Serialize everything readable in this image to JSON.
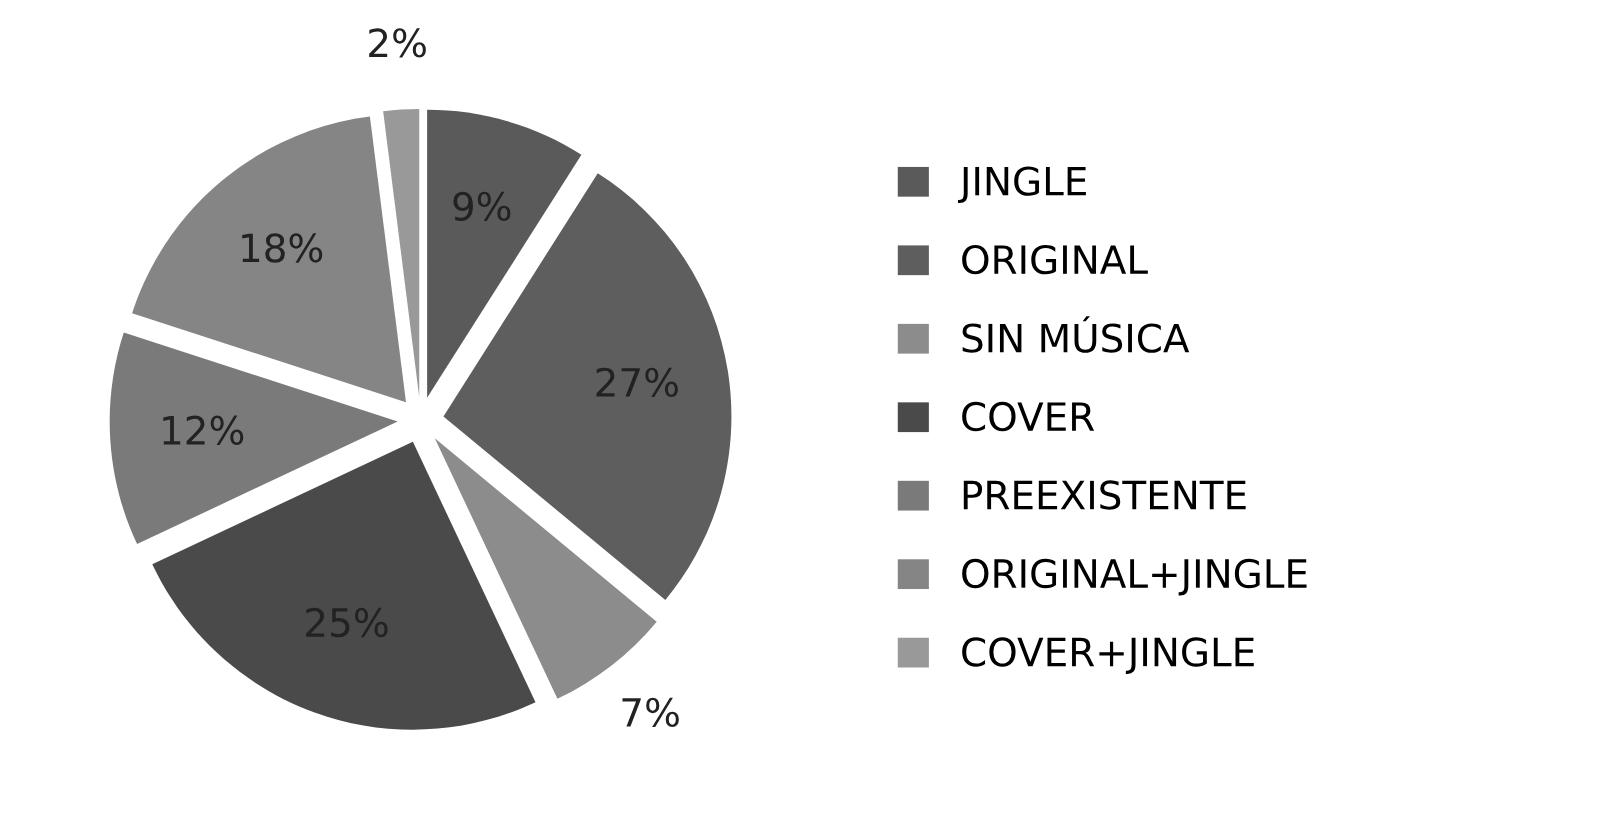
{
  "chart_data": {
    "type": "pie",
    "categories": [
      "JINGLE",
      "ORIGINAL",
      "SIN MÚSICA",
      "COVER",
      "PREEXISTENTE",
      "ORIGINAL+JINGLE",
      "COVER+JINGLE"
    ],
    "values": [
      9,
      27,
      7,
      25,
      12,
      18,
      2
    ],
    "value_labels": [
      "9%",
      "27%",
      "7%",
      "25%",
      "12%",
      "18%",
      "2%"
    ],
    "colors": [
      "#5a5a5a",
      "#5e5e5e",
      "#8c8c8c",
      "#4a4a4a",
      "#7a7a7a",
      "#858585",
      "#999999"
    ],
    "legend": "right"
  }
}
